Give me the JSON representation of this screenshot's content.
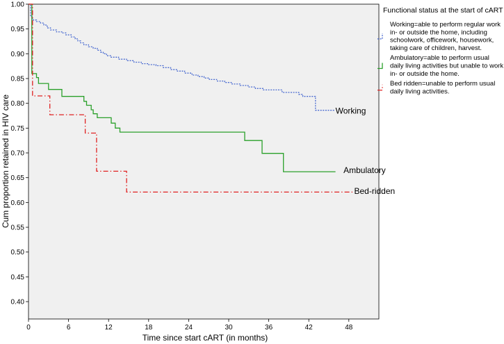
{
  "chart_data": {
    "type": "line",
    "title": "",
    "xlabel": "Time since start cART (in months)",
    "ylabel": "Cum proportion retained in HIV care",
    "xlim": [
      0,
      52.5
    ],
    "ylim": [
      0.365,
      1.0
    ],
    "xticks": [
      0,
      6,
      12,
      18,
      24,
      30,
      36,
      42,
      48
    ],
    "yticks": [
      0.4,
      0.45,
      0.5,
      0.55,
      0.6,
      0.65,
      0.7,
      0.75,
      0.8,
      0.85,
      0.9,
      0.95,
      1.0
    ],
    "xtick_labels": [
      "0",
      "6",
      "12",
      "18",
      "24",
      "30",
      "36",
      "42",
      "48"
    ],
    "ytick_labels": [
      "0.40",
      "0.45",
      "0.50",
      "0.55",
      "0.60",
      "0.65",
      "0.70",
      "0.75",
      "0.80",
      "0.85",
      "0.90",
      "0.95",
      "1.00"
    ],
    "legend": {
      "title": "Functional status at the start of cART",
      "position": "top-right",
      "entries": [
        {
          "lines": [
            "Working=able to perform regular work",
            "in- or outside the home, including",
            "schoolwork, officework, housework,",
            "taking care of children, harvest."
          ],
          "color": "#4a6bd0",
          "dash": "dotted"
        },
        {
          "lines": [
            "Ambulatory=able to perform usual",
            "daily living activities but unable to work",
            "in- or outside the home."
          ],
          "color": "#2aa02a",
          "dash": "solid"
        },
        {
          "lines": [
            "Bed ridden=unable to perform usual",
            "daily living activities."
          ],
          "color": "#e02020",
          "dash": "dashdot"
        }
      ]
    },
    "series": [
      {
        "name": "Working",
        "label": "Working",
        "color": "#4a6bd0",
        "dash": "dotted",
        "points": [
          [
            0,
            1.0
          ],
          [
            0.3,
            0.975
          ],
          [
            0.6,
            0.968
          ],
          [
            1.2,
            0.965
          ],
          [
            1.8,
            0.962
          ],
          [
            2.3,
            0.958
          ],
          [
            2.8,
            0.952
          ],
          [
            3.3,
            0.948
          ],
          [
            4.2,
            0.944
          ],
          [
            5.0,
            0.942
          ],
          [
            5.6,
            0.938
          ],
          [
            6.4,
            0.934
          ],
          [
            7.0,
            0.93
          ],
          [
            7.4,
            0.926
          ],
          [
            7.8,
            0.922
          ],
          [
            8.3,
            0.918
          ],
          [
            9.0,
            0.914
          ],
          [
            9.7,
            0.911
          ],
          [
            10.3,
            0.907
          ],
          [
            10.8,
            0.903
          ],
          [
            11.2,
            0.9
          ],
          [
            11.7,
            0.896
          ],
          [
            12.3,
            0.893
          ],
          [
            13.5,
            0.889
          ],
          [
            14.7,
            0.886
          ],
          [
            15.8,
            0.883
          ],
          [
            16.9,
            0.88
          ],
          [
            18.0,
            0.878
          ],
          [
            19.1,
            0.876
          ],
          [
            20.2,
            0.872
          ],
          [
            21.3,
            0.868
          ],
          [
            22.3,
            0.865
          ],
          [
            23.4,
            0.861
          ],
          [
            24.5,
            0.857
          ],
          [
            25.4,
            0.854
          ],
          [
            26.3,
            0.851
          ],
          [
            27.1,
            0.848
          ],
          [
            28.2,
            0.845
          ],
          [
            29.4,
            0.842
          ],
          [
            30.5,
            0.839
          ],
          [
            31.7,
            0.836
          ],
          [
            32.9,
            0.833
          ],
          [
            34.0,
            0.83
          ],
          [
            35.2,
            0.827
          ],
          [
            38.0,
            0.822
          ],
          [
            40.5,
            0.818
          ],
          [
            41.1,
            0.814
          ],
          [
            43.0,
            0.786
          ],
          [
            45.8,
            0.786
          ]
        ],
        "label_pos": [
          46.0,
          0.785
        ]
      },
      {
        "name": "Ambulatory",
        "label": "Ambulatory",
        "color": "#2aa02a",
        "dash": "solid",
        "points": [
          [
            0,
            1.0
          ],
          [
            0.5,
            0.86
          ],
          [
            1.2,
            0.852
          ],
          [
            1.5,
            0.84
          ],
          [
            3.0,
            0.828
          ],
          [
            5.0,
            0.814
          ],
          [
            8.3,
            0.804
          ],
          [
            8.7,
            0.796
          ],
          [
            9.4,
            0.787
          ],
          [
            9.7,
            0.779
          ],
          [
            10.3,
            0.771
          ],
          [
            12.4,
            0.76
          ],
          [
            13.0,
            0.75
          ],
          [
            13.7,
            0.742
          ],
          [
            32.0,
            0.742
          ],
          [
            32.4,
            0.725
          ],
          [
            34.7,
            0.725
          ],
          [
            35.0,
            0.699
          ],
          [
            38.0,
            0.699
          ],
          [
            38.2,
            0.662
          ],
          [
            46.0,
            0.662
          ]
        ],
        "label_pos": [
          47.2,
          0.665
        ]
      },
      {
        "name": "Bed-ridden",
        "label": "Bed-ridden",
        "color": "#e02020",
        "dash": "dashdot",
        "points": [
          [
            0,
            1.0
          ],
          [
            0.6,
            0.815
          ],
          [
            3.2,
            0.777
          ],
          [
            8.5,
            0.74
          ],
          [
            10.2,
            0.663
          ],
          [
            14.7,
            0.621
          ],
          [
            48.6,
            0.621
          ]
        ],
        "label_pos": [
          48.8,
          0.623
        ]
      }
    ]
  }
}
